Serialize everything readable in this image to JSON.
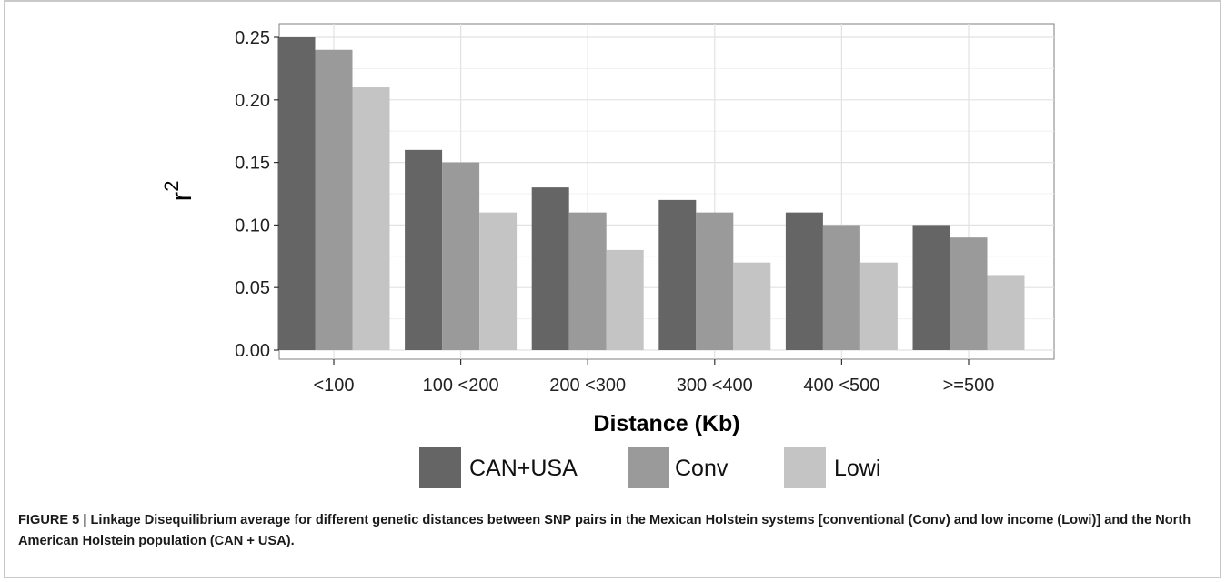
{
  "chart_data": {
    "type": "bar",
    "categories": [
      "<100",
      "100 <200",
      "200 <300",
      "300 <400",
      "400 <500",
      ">=500"
    ],
    "series": [
      {
        "name": "CAN+USA",
        "values": [
          0.25,
          0.16,
          0.13,
          0.12,
          0.11,
          0.1
        ]
      },
      {
        "name": "Conv",
        "values": [
          0.24,
          0.15,
          0.11,
          0.11,
          0.1,
          0.09
        ]
      },
      {
        "name": "Lowi",
        "values": [
          0.21,
          0.11,
          0.08,
          0.07,
          0.07,
          0.06
        ]
      }
    ],
    "colors": [
      "#656565",
      "#9a9a9a",
      "#c4c4c4"
    ],
    "xlabel": "Distance (Kb)",
    "ylabel_base": "r",
    "ylabel_sup": "2",
    "ylim": [
      0,
      0.257
    ],
    "yticks": [
      0.0,
      0.05,
      0.1,
      0.15,
      0.2,
      0.25
    ],
    "ytick_labels": [
      "0.00",
      "0.05",
      "0.10",
      "0.15",
      "0.20",
      "0.25"
    ],
    "grid": true,
    "legend_position": "bottom"
  },
  "caption": "FIGURE 5 | Linkage Disequilibrium average for different genetic distances between SNP pairs in the Mexican Holstein systems [conventional (Conv) and low income (Lowi)] and the North American Holstein population (CAN + USA)."
}
